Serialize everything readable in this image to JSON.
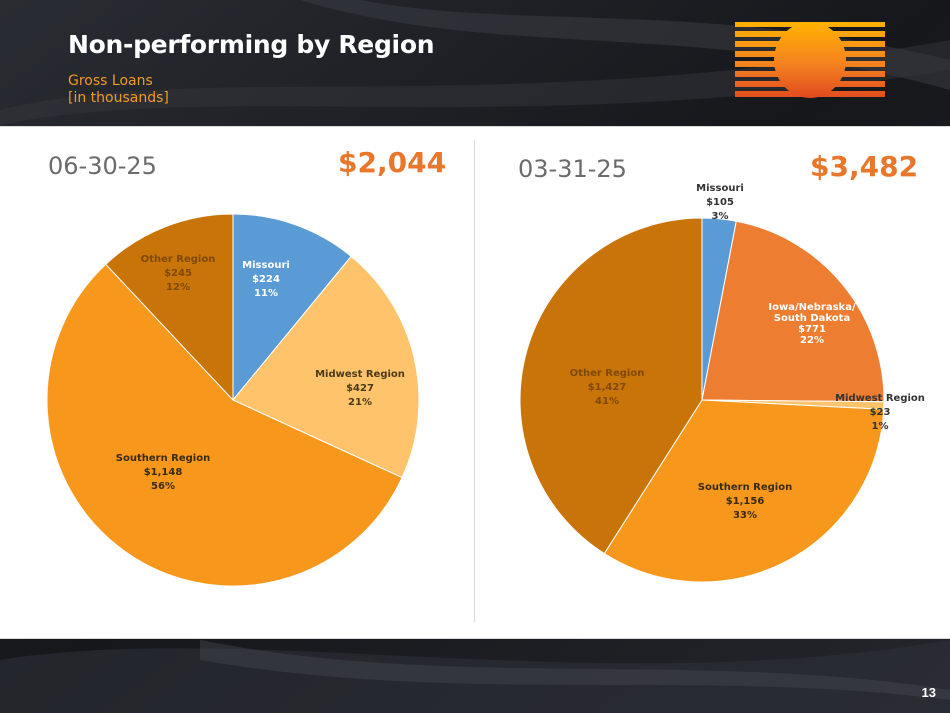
{
  "header": {
    "title": "Non-performing by Region",
    "subtitle_line1": "Gross Loans",
    "subtitle_line2": "[in thousands]"
  },
  "colors": {
    "missouri": "#5b9bd5",
    "midwest_left": "#ffc36b",
    "southern": "#f7981d",
    "other": "#c87408",
    "iowa": "#ed7d31",
    "midwest_right": "#ffc36b",
    "label_other": "#7f4a05"
  },
  "chart_data": [
    {
      "type": "pie",
      "title": "06-30-25",
      "total": "$2,044",
      "slices": [
        {
          "name": "Missouri",
          "value": 224,
          "value_label": "$224",
          "percent_label": "11%"
        },
        {
          "name": "Midwest Region",
          "value": 427,
          "value_label": "$427",
          "percent_label": "21%"
        },
        {
          "name": "Southern Region",
          "value": 1148,
          "value_label": "$1,148",
          "percent_label": "56%"
        },
        {
          "name": "Other Region",
          "value": 245,
          "value_label": "$245",
          "percent_label": "12%"
        }
      ]
    },
    {
      "type": "pie",
      "title": "03-31-25",
      "total": "$3,482",
      "slices": [
        {
          "name": "Missouri",
          "value": 105,
          "value_label": "$105",
          "percent_label": "3%"
        },
        {
          "name": "Iowa/Nebraska/ South Dakota",
          "value": 771,
          "value_label": "$771",
          "percent_label": "22%"
        },
        {
          "name": "Midwest Region",
          "value": 23,
          "value_label": "$23",
          "percent_label": "1%"
        },
        {
          "name": "Southern Region",
          "value": 1156,
          "value_label": "$1,156",
          "percent_label": "33%"
        },
        {
          "name": "Other Region",
          "value": 1427,
          "value_label": "$1,427",
          "percent_label": "41%"
        }
      ]
    }
  ],
  "page_number": "13"
}
